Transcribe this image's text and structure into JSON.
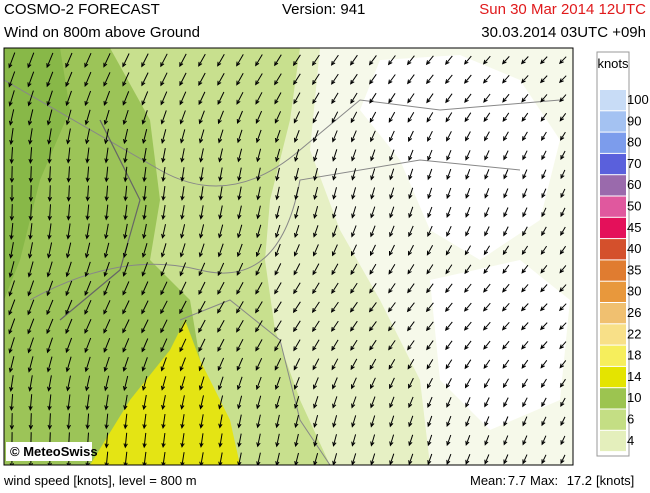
{
  "header": {
    "title": "COSMO-2 FORECAST",
    "subtitle": "Wind on 800m above Ground",
    "version": "Version: 941",
    "valid_time": "Sun 30 Mar 2014 12UTC",
    "run": "30.03.2014 03UTC +09h"
  },
  "legend": {
    "unit": "knots",
    "levels": [
      {
        "value": 100,
        "color": "#c8dcf6"
      },
      {
        "value": 90,
        "color": "#a4c2f2"
      },
      {
        "value": 80,
        "color": "#7c9cec"
      },
      {
        "value": 70,
        "color": "#5a60dc"
      },
      {
        "value": 60,
        "color": "#9a6aac"
      },
      {
        "value": 50,
        "color": "#e0589e"
      },
      {
        "value": 45,
        "color": "#e4105a"
      },
      {
        "value": 40,
        "color": "#d4502c"
      },
      {
        "value": 35,
        "color": "#e07c30"
      },
      {
        "value": 30,
        "color": "#e8983c"
      },
      {
        "value": 26,
        "color": "#f0c070"
      },
      {
        "value": 22,
        "color": "#f8e088"
      },
      {
        "value": 18,
        "color": "#f6ee5c"
      },
      {
        "value": 14,
        "color": "#e4e400"
      },
      {
        "value": 10,
        "color": "#9cc450"
      },
      {
        "value": 6,
        "color": "#c4de84"
      },
      {
        "value": 4,
        "color": "#e4efbc"
      }
    ]
  },
  "credit": "© MeteoSwiss",
  "footer": {
    "description": "wind speed [knots], level = 800 m",
    "mean_label": "Mean:",
    "mean": 7.7,
    "max_label": "Max:",
    "max": 17.2,
    "unit": "[knots]"
  }
}
